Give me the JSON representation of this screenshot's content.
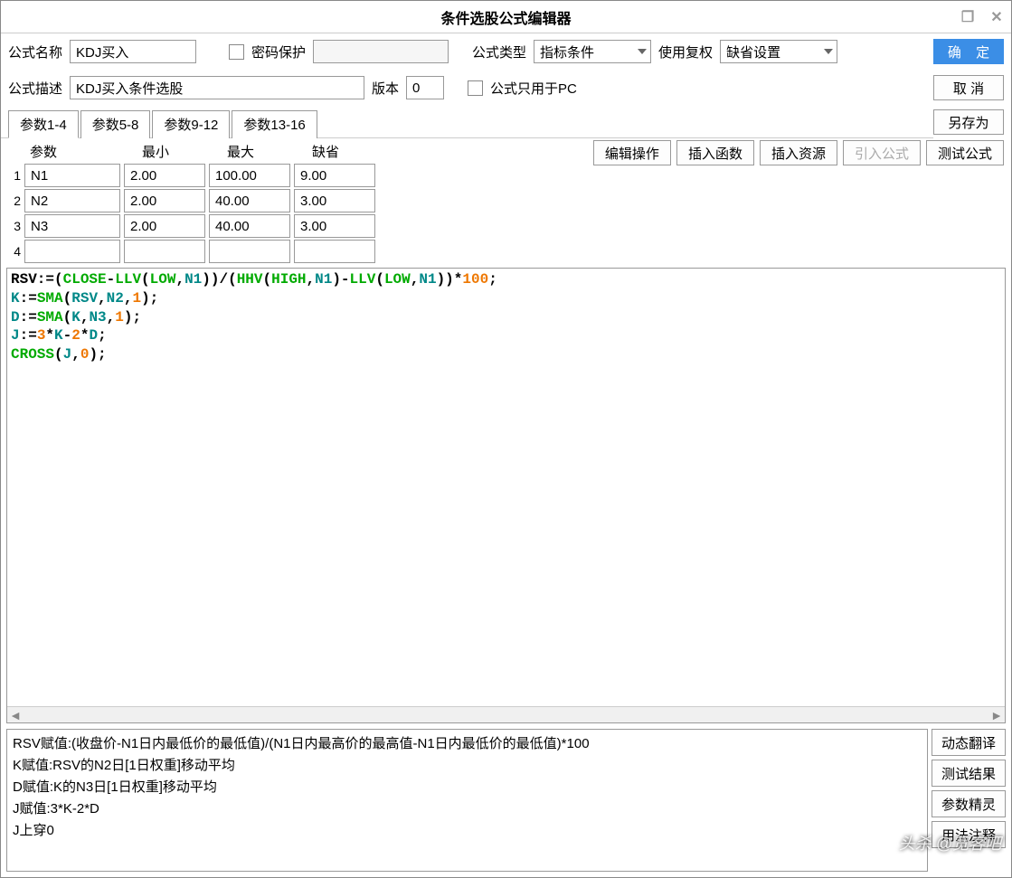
{
  "title": "条件选股公式编辑器",
  "window_controls": {
    "maximize": "❐",
    "close": "✕"
  },
  "labels": {
    "formula_name": "公式名称",
    "password": "密码保护",
    "formula_type": "公式类型",
    "fuquan": "使用复权",
    "formula_desc": "公式描述",
    "version": "版本",
    "pc_only": "公式只用于PC"
  },
  "fields": {
    "formula_name": "KDJ买入",
    "formula_desc": "KDJ买入条件选股",
    "version": "0",
    "formula_type": "指标条件",
    "fuquan": "缺省设置"
  },
  "buttons": {
    "ok": "确 定",
    "cancel": "取 消",
    "saveas": "另存为",
    "edit_op": "编辑操作",
    "insert_fn": "插入函数",
    "insert_res": "插入资源",
    "import_formula": "引入公式",
    "test": "测试公式",
    "dyn_trans": "动态翻译",
    "test_result": "测试结果",
    "param_wizard": "参数精灵",
    "usage": "用法注释"
  },
  "tabs": [
    "参数1-4",
    "参数5-8",
    "参数9-12",
    "参数13-16"
  ],
  "active_tab": 0,
  "param_headers": {
    "name": "参数",
    "min": "最小",
    "max": "最大",
    "def": "缺省"
  },
  "params": [
    {
      "idx": "1",
      "name": "N1",
      "min": "2.00",
      "max": "100.00",
      "def": "9.00"
    },
    {
      "idx": "2",
      "name": "N2",
      "min": "2.00",
      "max": "40.00",
      "def": "3.00"
    },
    {
      "idx": "3",
      "name": "N3",
      "min": "2.00",
      "max": "40.00",
      "def": "3.00"
    },
    {
      "idx": "4",
      "name": "",
      "min": "",
      "max": "",
      "def": ""
    }
  ],
  "code": {
    "tokens": [
      [
        [
          "black",
          "RSV:=("
        ],
        [
          "green",
          "CLOSE"
        ],
        [
          "black",
          "-"
        ],
        [
          "green",
          "LLV"
        ],
        [
          "black",
          "("
        ],
        [
          "green",
          "LOW"
        ],
        [
          "black",
          ","
        ],
        [
          "cyan",
          "N1"
        ],
        [
          "black",
          "))/("
        ],
        [
          "green",
          "HHV"
        ],
        [
          "black",
          "("
        ],
        [
          "green",
          "HIGH"
        ],
        [
          "black",
          ","
        ],
        [
          "cyan",
          "N1"
        ],
        [
          "black",
          ")-"
        ],
        [
          "green",
          "LLV"
        ],
        [
          "black",
          "("
        ],
        [
          "green",
          "LOW"
        ],
        [
          "black",
          ","
        ],
        [
          "cyan",
          "N1"
        ],
        [
          "black",
          "))*"
        ],
        [
          "orange",
          "100"
        ],
        [
          "black",
          ";"
        ]
      ],
      [
        [
          "cyan",
          "K"
        ],
        [
          "black",
          ":="
        ],
        [
          "green",
          "SMA"
        ],
        [
          "black",
          "("
        ],
        [
          "cyan",
          "RSV"
        ],
        [
          "black",
          ","
        ],
        [
          "cyan",
          "N2"
        ],
        [
          "black",
          ","
        ],
        [
          "orange",
          "1"
        ],
        [
          "black",
          ");"
        ]
      ],
      [
        [
          "cyan",
          "D"
        ],
        [
          "black",
          ":="
        ],
        [
          "green",
          "SMA"
        ],
        [
          "black",
          "("
        ],
        [
          "cyan",
          "K"
        ],
        [
          "black",
          ","
        ],
        [
          "cyan",
          "N3"
        ],
        [
          "black",
          ","
        ],
        [
          "orange",
          "1"
        ],
        [
          "black",
          ");"
        ]
      ],
      [
        [
          "cyan",
          "J"
        ],
        [
          "black",
          ":="
        ],
        [
          "orange",
          "3"
        ],
        [
          "black",
          "*"
        ],
        [
          "cyan",
          "K"
        ],
        [
          "black",
          "-"
        ],
        [
          "orange",
          "2"
        ],
        [
          "black",
          "*"
        ],
        [
          "cyan",
          "D"
        ],
        [
          "black",
          ";"
        ]
      ],
      [
        [
          "green",
          "CROSS"
        ],
        [
          "black",
          "("
        ],
        [
          "cyan",
          "J"
        ],
        [
          "black",
          ","
        ],
        [
          "orange",
          "0"
        ],
        [
          "black",
          ");"
        ]
      ]
    ]
  },
  "explain_lines": [
    "RSV赋值:(收盘价-N1日内最低价的最低值)/(N1日内最高价的最高值-N1日内最低价的最低值)*100",
    "K赋值:RSV的N2日[1日权重]移动平均",
    "D赋值:K的N3日[1日权重]移动平均",
    "J赋值:3*K-2*D",
    "J上穿0"
  ],
  "watermark": "头杀 @宽客吧"
}
